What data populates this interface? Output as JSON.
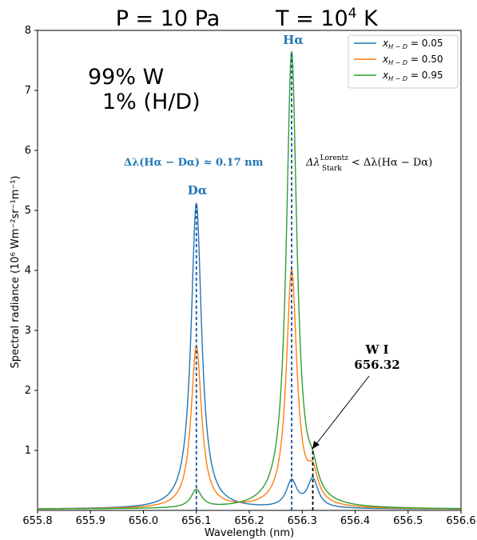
{
  "chart_data": {
    "type": "line",
    "title_left": "P = 10 Pa",
    "title_right_base": "T = 10",
    "title_right_exp": "4",
    "title_right_unit": " K",
    "xlabel": "Wavelength (nm)",
    "ylabel": "Spectral radiance (10⁶ Wm⁻²sr⁻¹m⁻¹)",
    "xlim": [
      655.8,
      656.6
    ],
    "ylim": [
      0,
      8
    ],
    "xticks": [
      "655.8",
      "655.9",
      "656.0",
      "656.1",
      "656.2",
      "656.3",
      "656.4",
      "656.5",
      "656.6"
    ],
    "yticks": [
      "1",
      "2",
      "3",
      "4",
      "5",
      "6",
      "7",
      "8"
    ],
    "legend_position": "top-right",
    "lines": {
      "D_alpha": 656.1,
      "H_alpha": 656.28,
      "W_I": 656.32
    },
    "series": [
      {
        "name": "x_{H-D} = 0.05",
        "color": "#1f77b4",
        "gamma": 0.012,
        "peaks": [
          {
            "x": 656.1,
            "amp": 5.1
          },
          {
            "x": 656.28,
            "amp": 0.44
          },
          {
            "x": 656.32,
            "amp": 0.48
          }
        ]
      },
      {
        "name": "x_{H-D} = 0.50",
        "color": "#ff7f0e",
        "gamma": 0.012,
        "peaks": [
          {
            "x": 656.1,
            "amp": 2.7
          },
          {
            "x": 656.28,
            "amp": 3.95
          },
          {
            "x": 656.32,
            "amp": 0.45
          }
        ]
      },
      {
        "name": "x_{H-D} = 0.95",
        "color": "#2ca02c",
        "gamma": 0.012,
        "peaks": [
          {
            "x": 656.1,
            "amp": 0.3
          },
          {
            "x": 656.28,
            "amp": 7.6
          },
          {
            "x": 656.32,
            "amp": 0.35
          }
        ]
      }
    ],
    "legend": [
      {
        "base": "x",
        "sub": "H − D",
        "value": " = 0.05"
      },
      {
        "base": "x",
        "sub": "H − D",
        "value": " = 0.50"
      },
      {
        "base": "x",
        "sub": "H − D",
        "value": " = 0.95"
      }
    ],
    "annotations": {
      "composition_line1": "99% W",
      "composition_line2": "1% (H/D)",
      "delta_text": "Δλ(Hα − Dα) ≈ 0.17 nm",
      "delta_left": "Δλ",
      "delta_lorentz": "Lorentz",
      "delta_stark": "Stark",
      "delta_right": " < Δλ(Hα − Dα)",
      "label_D": "Dα",
      "label_H": "Hα",
      "label_W1": "W I",
      "label_W2": "656.32"
    }
  }
}
